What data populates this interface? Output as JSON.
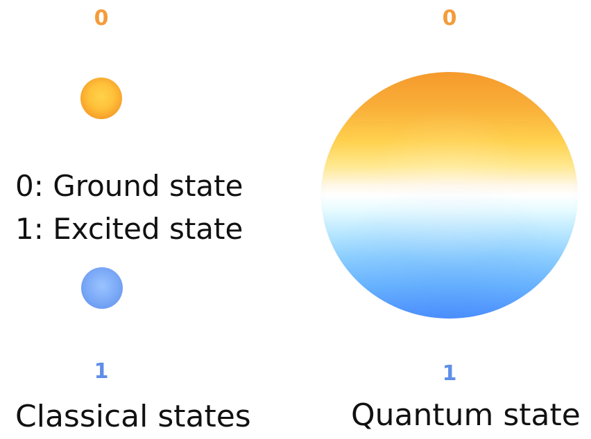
{
  "diagram": {
    "classical": {
      "top_label": "0",
      "bottom_label": "1",
      "definitions": [
        "0: Ground state",
        "1: Excited state"
      ],
      "caption": "Classical states",
      "colors": {
        "zero": "#f5a32d",
        "one": "#6f9ff2"
      }
    },
    "quantum": {
      "top_label": "0",
      "bottom_label": "1",
      "caption": "Quantum state",
      "colors": {
        "top": "#f59a2d",
        "middle": "#ffffff",
        "bottom": "#4f93ff"
      }
    }
  }
}
